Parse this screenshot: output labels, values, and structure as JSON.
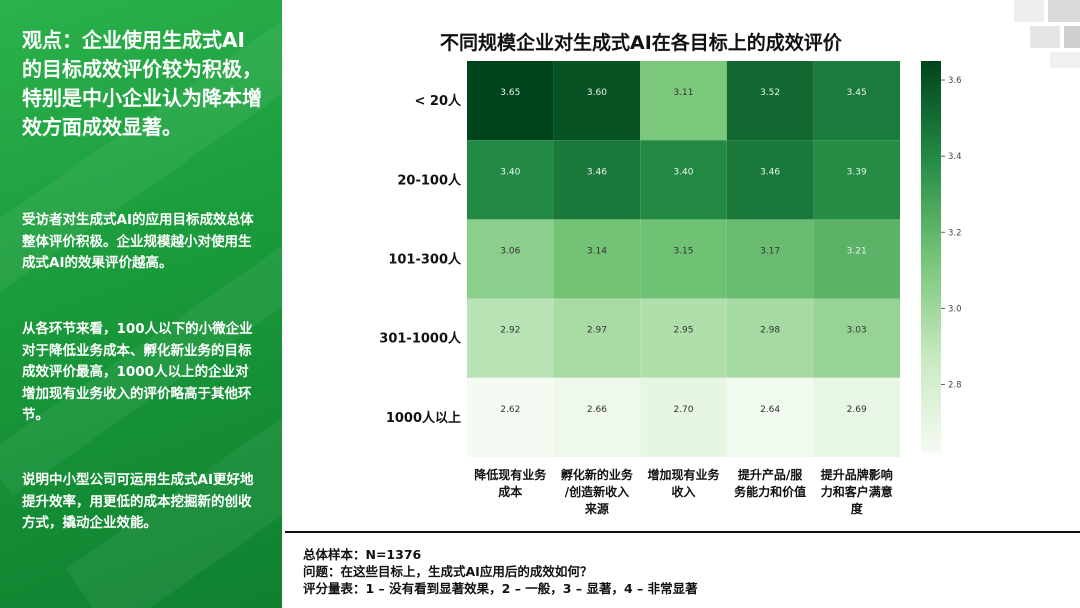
{
  "panel": {
    "heading": "观点：企业使用生成式AI的目标成效评价较为积极，特别是中小企业认为降本增效方面成效显著。",
    "para1": "受访者对生成式AI的应用目标成效总体整体评价积极。企业规模越小对使用生成式AI的效果评价越高。",
    "para2": "从各环节来看，100人以下的小微企业对于降低业务成本、孵化新业务的目标成效评价最高，1000人以上的企业对增加现有业务收入的评价略高于其他环节。",
    "para3": "说明中小型公司可运用生成式AI更好地提升效率，用更低的成本挖掘新的创收方式，撬动企业效能。"
  },
  "chart_data": {
    "type": "heatmap",
    "title": "不同规模企业对生成式AI在各目标上的成效评价",
    "rows": [
      "< 20人",
      "20-100人",
      "101-300人",
      "301-1000人",
      "1000人以上"
    ],
    "columns": [
      "降低现有业务成本",
      "孵化新的业务/创造新收入来源",
      "增加现有业务收入",
      "提升产品/服务能力和价值",
      "提升品牌影响力和客户满意度"
    ],
    "column_labels": [
      [
        "降低现有业务",
        "成本"
      ],
      [
        "孵化新的业务",
        "/创造新收入",
        "来源"
      ],
      [
        "增加现有业务",
        "收入"
      ],
      [
        "提升产品/服",
        "务能力和价值"
      ],
      [
        "提升品牌影响",
        "力和客户满意",
        "度"
      ]
    ],
    "values": [
      [
        3.65,
        3.6,
        3.11,
        3.52,
        3.45
      ],
      [
        3.4,
        3.46,
        3.4,
        3.46,
        3.39
      ],
      [
        3.06,
        3.14,
        3.15,
        3.17,
        3.21
      ],
      [
        2.92,
        2.97,
        2.95,
        2.98,
        3.03
      ],
      [
        2.62,
        2.66,
        2.7,
        2.64,
        2.69
      ]
    ],
    "value_labels": [
      [
        "3.65",
        "3.60",
        "3.11",
        "3.52",
        "3.45"
      ],
      [
        "3.40",
        "3.46",
        "3.40",
        "3.46",
        "3.39"
      ],
      [
        "3.06",
        "3.14",
        "3.15",
        "3.17",
        "3.21"
      ],
      [
        "2.92",
        "2.97",
        "2.95",
        "2.98",
        "3.03"
      ],
      [
        "2.62",
        "2.66",
        "2.70",
        "2.64",
        "2.69"
      ]
    ],
    "color_scale": {
      "min": 2.62,
      "max": 3.65,
      "low_color": "#f5fbf3",
      "high_color": "#00441b"
    },
    "colorbar_ticks": [
      "2.8",
      "3.0",
      "3.2",
      "3.4",
      "3.6"
    ],
    "colorbar_tick_values": [
      2.8,
      3.0,
      3.2,
      3.4,
      3.6
    ]
  },
  "notes": {
    "sample": "总体样本：N=1376",
    "question": "问题：在这些目标上，生成式AI应用后的成效如何？",
    "scale": "评分量表：1 – 没有看到显著效果，2 – 一般，3 – 显著，4 – 非常显著"
  },
  "colors": {
    "panel_green": "#1a9a3b",
    "text_dark": "#111111"
  }
}
